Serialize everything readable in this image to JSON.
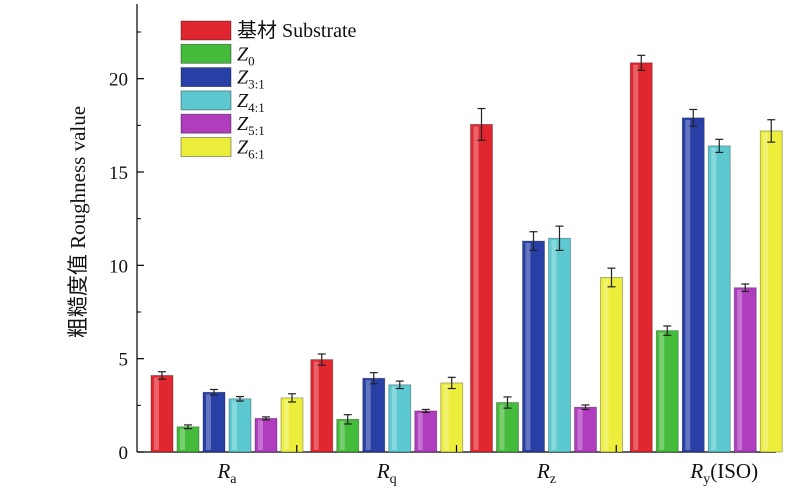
{
  "chart_data": {
    "type": "bar",
    "ylabel": "粗糙度值 Roughness value",
    "ylim": [
      0,
      24
    ],
    "yticks": [
      0,
      5,
      10,
      15,
      20
    ],
    "categories": [
      {
        "main": "R",
        "sub": "a",
        "suffix": ""
      },
      {
        "main": "R",
        "sub": "q",
        "suffix": ""
      },
      {
        "main": "R",
        "sub": "z",
        "suffix": ""
      },
      {
        "main": "R",
        "sub": "y",
        "suffix": "(ISO)"
      }
    ],
    "series": [
      {
        "name": "基材 Substrate",
        "sub": "",
        "plain": true,
        "color": "#e0262f",
        "values": [
          4.1,
          4.95,
          17.55,
          20.85
        ],
        "errors": [
          0.2,
          0.3,
          0.85,
          0.4
        ]
      },
      {
        "name": "Z",
        "sub": "0",
        "plain": false,
        "color": "#44bb3a",
        "values": [
          1.35,
          1.75,
          2.65,
          6.5
        ],
        "errors": [
          0.1,
          0.25,
          0.3,
          0.25
        ]
      },
      {
        "name": "Z",
        "sub": "3:1",
        "plain": false,
        "color": "#2840a6",
        "values": [
          3.2,
          3.95,
          11.3,
          17.9
        ],
        "errors": [
          0.15,
          0.3,
          0.5,
          0.45
        ]
      },
      {
        "name": "Z",
        "sub": "4:1",
        "plain": false,
        "color": "#5cc9d0",
        "values": [
          2.85,
          3.6,
          11.45,
          16.4
        ],
        "errors": [
          0.12,
          0.2,
          0.65,
          0.35
        ]
      },
      {
        "name": "Z",
        "sub": "5:1",
        "plain": false,
        "color": "#b03cbe",
        "values": [
          1.8,
          2.2,
          2.4,
          8.8
        ],
        "errors": [
          0.08,
          0.08,
          0.12,
          0.2
        ]
      },
      {
        "name": "Z",
        "sub": "6:1",
        "plain": false,
        "color": "#eded3c",
        "values": [
          2.9,
          3.7,
          9.35,
          17.2
        ],
        "errors": [
          0.22,
          0.3,
          0.5,
          0.6
        ]
      }
    ],
    "legend_position": "top-left",
    "grid": false
  }
}
